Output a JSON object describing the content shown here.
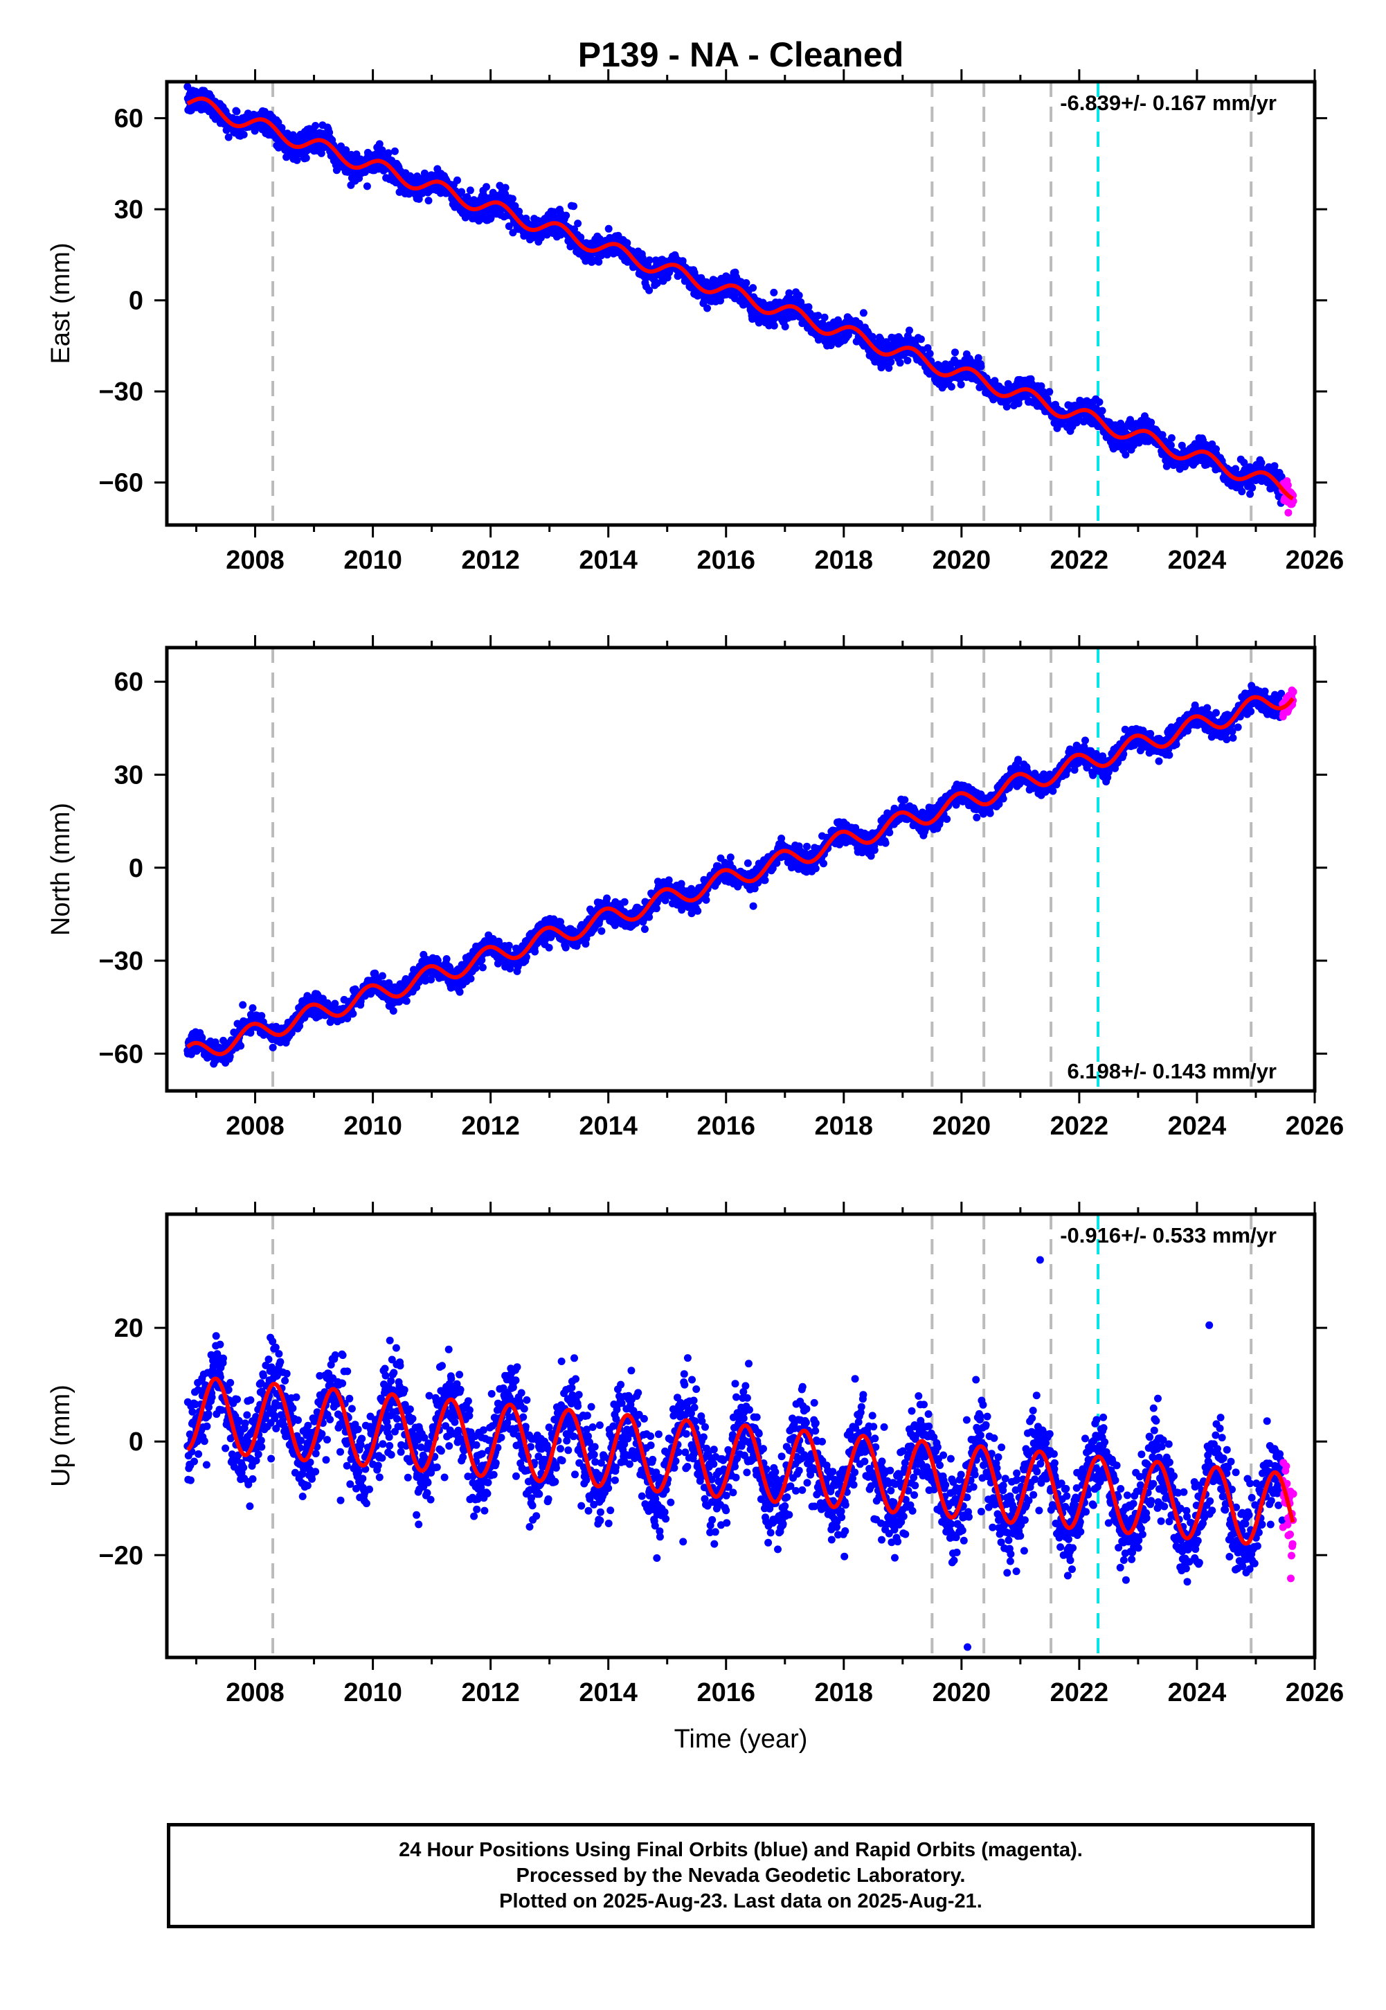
{
  "title": "P139  - NA - Cleaned",
  "colors": {
    "final_orbits": "#0000ff",
    "rapid_orbits": "#ff00ff",
    "model_fit": "#ff0000",
    "equipment_change_line": "#bbbbbb",
    "earthquake_line": "#00e5e5",
    "frame": "#000000"
  },
  "chart_data": [
    {
      "type": "scatter",
      "component": "east",
      "ylabel": "East (mm)",
      "xlabel": "",
      "xlim": [
        2006.5,
        2026.0
      ],
      "ylim": [
        -74,
        72
      ],
      "x_ticks": [
        2008,
        2010,
        2012,
        2014,
        2016,
        2018,
        2020,
        2022,
        2024,
        2026
      ],
      "y_ticks": [
        60,
        30,
        0,
        -30,
        -60
      ],
      "y_tick_labels": [
        "60",
        "30",
        "0",
        "−30",
        "−60"
      ],
      "rate_label": "-6.839+/- 0.167 mm/yr",
      "rate_label_position": "top-right",
      "start_year": 2006.85,
      "end_year": 2025.64,
      "rapid_from_year": 2025.45,
      "offset_at_start": 65.7,
      "rate_mm_per_yr": -6.839,
      "annual_amplitude_mm": 2.6,
      "annual_phase": 0.6,
      "scatter_sd_mm": 2.0,
      "grid": false,
      "legend": "none"
    },
    {
      "type": "scatter",
      "component": "north",
      "ylabel": "North (mm)",
      "xlabel": "",
      "xlim": [
        2006.5,
        2026.0
      ],
      "ylim": [
        -72,
        71
      ],
      "x_ticks": [
        2008,
        2010,
        2012,
        2014,
        2016,
        2018,
        2020,
        2022,
        2024,
        2026
      ],
      "y_ticks": [
        60,
        30,
        0,
        -30,
        -60
      ],
      "y_tick_labels": [
        "60",
        "30",
        "0",
        "−30",
        "−60"
      ],
      "rate_label": "6.198+/- 0.143 mm/yr",
      "rate_label_position": "bottom-right",
      "start_year": 2006.85,
      "end_year": 2025.64,
      "rapid_from_year": 2025.45,
      "offset_at_start": -60.5,
      "rate_mm_per_yr": 6.198,
      "annual_amplitude_mm": 3.2,
      "annual_phase": 1.9,
      "scatter_sd_mm": 1.7,
      "grid": false,
      "legend": "none"
    },
    {
      "type": "scatter",
      "component": "up",
      "ylabel": "Up (mm)",
      "xlabel": "Time (year)",
      "xlim": [
        2006.5,
        2026.0
      ],
      "ylim": [
        -38,
        40
      ],
      "x_ticks": [
        2008,
        2010,
        2012,
        2014,
        2016,
        2018,
        2020,
        2022,
        2024,
        2026
      ],
      "y_ticks": [
        20,
        0,
        -20
      ],
      "y_tick_labels": [
        "20",
        "0",
        "−20"
      ],
      "rate_label": "-0.916+/- 0.533 mm/yr",
      "rate_label_position": "top-right",
      "start_year": 2006.85,
      "end_year": 2025.64,
      "rapid_from_year": 2025.45,
      "offset_at_start": 5.0,
      "rate_mm_per_yr": -0.916,
      "annual_amplitude_mm": 6.5,
      "annual_phase": -0.5,
      "scatter_sd_mm": 4.0,
      "grid": false,
      "legend": "none"
    }
  ],
  "event_lines": {
    "equipment_change_years": [
      2008.3,
      2019.5,
      2020.38,
      2021.52,
      2024.92
    ],
    "earthquake_years": [
      2022.32
    ]
  },
  "caption": {
    "line1": "24 Hour Positions Using Final Orbits (blue) and Rapid Orbits (magenta).",
    "line2": "Processed by the Nevada Geodetic Laboratory.",
    "line3": "Plotted on 2025-Aug-23. Last data on 2025-Aug-21."
  }
}
